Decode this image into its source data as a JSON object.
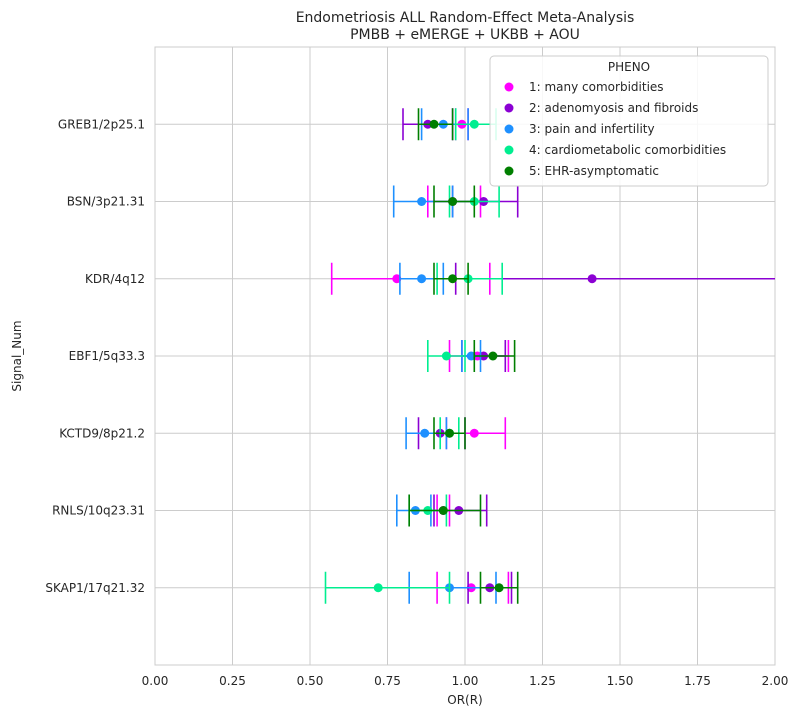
{
  "chart_data": {
    "type": "forest",
    "title": "Endometriosis ALL Random-Effect Meta-Analysis",
    "subtitle": "PMBB + eMERGE + UKBB + AOU",
    "xlabel": "OR(R)",
    "ylabel": "Signal_Num",
    "xlim": [
      0.0,
      2.0
    ],
    "x_ticks": [
      "0.00",
      "0.25",
      "0.50",
      "0.75",
      "1.00",
      "1.25",
      "1.50",
      "1.75",
      "2.00"
    ],
    "grid": true,
    "legend": {
      "title": "PHENO",
      "placement": "top-right"
    },
    "categories": [
      "GREB1/2p25.1",
      "BSN/3p21.31",
      "KDR/4q12",
      "EBF1/5q33.3",
      "KCTD9/8p21.2",
      "RNLS/10q23.31",
      "SKAP1/17q21.32"
    ],
    "series": [
      {
        "name": "1: many comorbidities",
        "color": "#ff00ff",
        "points": [
          {
            "or": 0.99,
            "lo": 0.97,
            "hi": 1.01
          },
          {
            "or": 0.96,
            "lo": 0.88,
            "hi": 1.05
          },
          {
            "or": 0.78,
            "lo": 0.57,
            "hi": 1.08
          },
          {
            "or": 1.04,
            "lo": 0.95,
            "hi": 1.14
          },
          {
            "or": 1.03,
            "lo": 0.94,
            "hi": 1.13
          },
          {
            "or": 0.93,
            "lo": 0.91,
            "hi": 0.95
          },
          {
            "or": 1.02,
            "lo": 0.91,
            "hi": 1.14
          }
        ]
      },
      {
        "name": "2: adenomyosis and fibroids",
        "color": "#8b00d3",
        "points": [
          {
            "or": 0.88,
            "lo": 0.8,
            "hi": 0.96
          },
          {
            "or": 1.06,
            "lo": 0.96,
            "hi": 1.17
          },
          {
            "or": 1.41,
            "lo": 0.97,
            "hi": 2.05
          },
          {
            "or": 1.06,
            "lo": 0.99,
            "hi": 1.13
          },
          {
            "or": 0.92,
            "lo": 0.85,
            "hi": 1.0
          },
          {
            "or": 0.98,
            "lo": 0.9,
            "hi": 1.07
          },
          {
            "or": 1.08,
            "lo": 1.01,
            "hi": 1.15
          }
        ]
      },
      {
        "name": "3: pain and infertility",
        "color": "#1e90ff",
        "points": [
          {
            "or": 0.93,
            "lo": 0.86,
            "hi": 1.01
          },
          {
            "or": 0.86,
            "lo": 0.77,
            "hi": 0.96
          },
          {
            "or": 0.86,
            "lo": 0.79,
            "hi": 0.93
          },
          {
            "or": 1.02,
            "lo": 0.99,
            "hi": 1.05
          },
          {
            "or": 0.87,
            "lo": 0.81,
            "hi": 0.94
          },
          {
            "or": 0.84,
            "lo": 0.78,
            "hi": 0.89
          },
          {
            "or": 0.95,
            "lo": 0.82,
            "hi": 1.1
          }
        ]
      },
      {
        "name": "4: cardiometabolic comorbidities",
        "color": "#00ee90",
        "points": [
          {
            "or": 1.03,
            "lo": 0.97,
            "hi": 1.1
          },
          {
            "or": 1.03,
            "lo": 0.95,
            "hi": 1.11
          },
          {
            "or": 1.01,
            "lo": 0.91,
            "hi": 1.12
          },
          {
            "or": 0.94,
            "lo": 0.88,
            "hi": 1.0
          },
          {
            "or": 0.95,
            "lo": 0.92,
            "hi": 0.98
          },
          {
            "or": 0.88,
            "lo": 0.82,
            "hi": 0.94
          },
          {
            "or": 0.72,
            "lo": 0.55,
            "hi": 0.95
          }
        ]
      },
      {
        "name": "5: EHR-asymptomatic",
        "color": "#007f00",
        "points": [
          {
            "or": 0.9,
            "lo": 0.85,
            "hi": 0.96
          },
          {
            "or": 0.96,
            "lo": 0.9,
            "hi": 1.03
          },
          {
            "or": 0.96,
            "lo": 0.9,
            "hi": 1.01
          },
          {
            "or": 1.09,
            "lo": 1.03,
            "hi": 1.16
          },
          {
            "or": 0.95,
            "lo": 0.9,
            "hi": 1.0
          },
          {
            "or": 0.93,
            "lo": 0.82,
            "hi": 1.05
          },
          {
            "or": 1.11,
            "lo": 1.05,
            "hi": 1.17
          }
        ]
      }
    ]
  }
}
